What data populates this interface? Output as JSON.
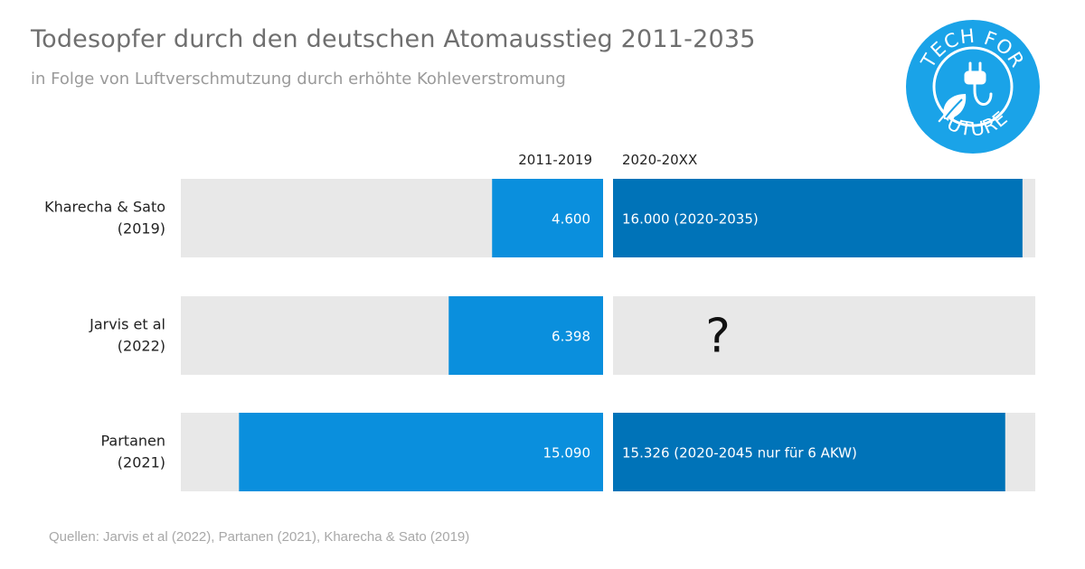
{
  "title": "Todesopfer durch den deutschen Atomausstieg 2011-2035",
  "subtitle": "in Folge von Luftverschmutzung durch erhöhte Kohleverstromung",
  "source": "Quellen: Jarvis et al (2022), Partanen (2021), Kharecha & Sato (2019)",
  "logo": {
    "text_top": "TECH FOR",
    "text_bottom": "FUTURE",
    "icons": [
      "plug-icon",
      "leaf-icon"
    ],
    "color": "#1aa3e8"
  },
  "chart_data": {
    "type": "bar",
    "orientation": "horizontal",
    "layout": "two-panel",
    "panels": [
      {
        "name": "2011-2019",
        "direction": "right-to-left",
        "max": 17500
      },
      {
        "name": "2020-20XX",
        "direction": "left-to-right",
        "max": 16500
      }
    ],
    "colors": {
      "background": "#e8e8e8",
      "2011-2019": "#0a8fdd",
      "2020-20XX": "#0073b8"
    },
    "rows": [
      {
        "label_line1": "Kharecha & Sato",
        "label_line2": "(2019)",
        "v2011_2019": 4600,
        "v2011_2019_label": "4.600",
        "v2020": 16000,
        "v2020_label": "16.000 (2020-2035)"
      },
      {
        "label_line1": "Jarvis et al",
        "label_line2": "(2022)",
        "v2011_2019": 6398,
        "v2011_2019_label": "6.398",
        "v2020": null,
        "v2020_label": "?"
      },
      {
        "label_line1": "Partanen",
        "label_line2": "(2021)",
        "v2011_2019": 15090,
        "v2011_2019_label": "15.090",
        "v2020": 15326,
        "v2020_label": "15.326 (2020-2045 nur für 6 AKW)"
      }
    ]
  }
}
